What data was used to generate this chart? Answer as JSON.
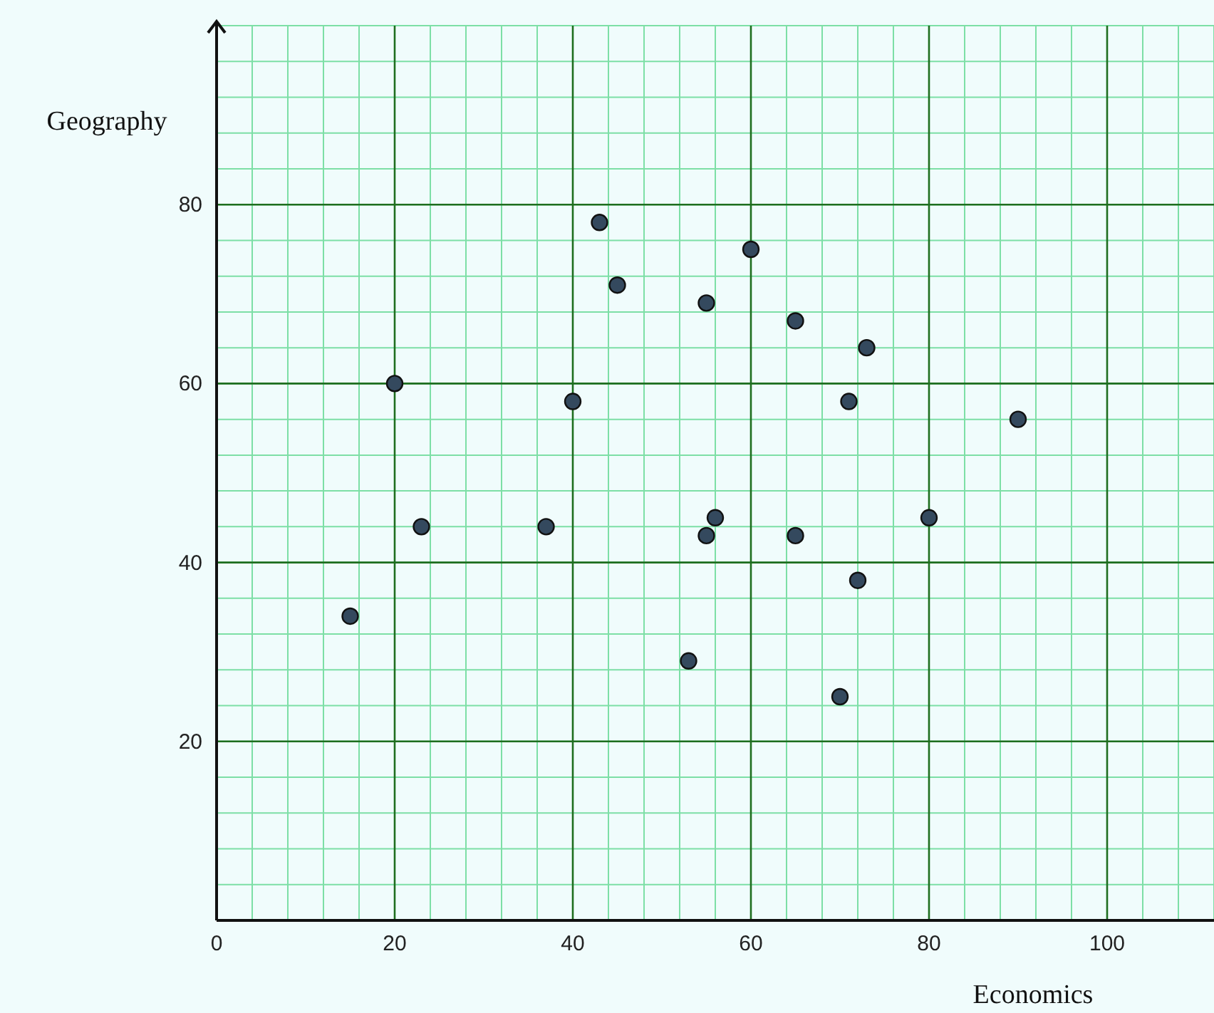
{
  "chart_data": {
    "type": "scatter",
    "xlabel": "Economics",
    "ylabel": "Geography",
    "x": [
      15,
      20,
      23,
      37,
      40,
      43,
      45,
      55,
      60,
      65,
      73,
      71,
      90,
      56,
      55,
      65,
      80,
      72,
      53,
      70
    ],
    "values": [
      34,
      60,
      44,
      44,
      58,
      78,
      71,
      69,
      75,
      67,
      64,
      58,
      56,
      45,
      43,
      43,
      45,
      38,
      29,
      25
    ],
    "color": "#34495e",
    "marker": "circle",
    "xlim": [
      0,
      112
    ],
    "ylim": [
      0,
      100
    ],
    "xticks": [
      0,
      20,
      40,
      60,
      80,
      100
    ],
    "yticks": [
      20,
      40,
      60,
      80
    ],
    "grid": true
  }
}
